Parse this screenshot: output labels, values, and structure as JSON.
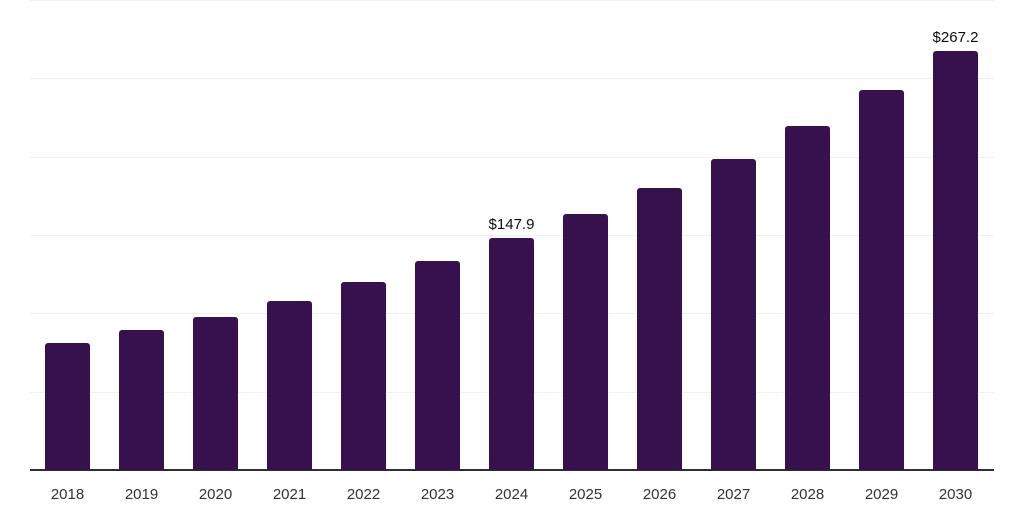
{
  "chart_data": {
    "type": "bar",
    "title": "",
    "xlabel": "",
    "ylabel": "",
    "categories": [
      "2018",
      "2019",
      "2020",
      "2021",
      "2022",
      "2023",
      "2024",
      "2025",
      "2026",
      "2027",
      "2028",
      "2029",
      "2030"
    ],
    "values": [
      81.3,
      89.6,
      97.8,
      107.6,
      119.7,
      133.2,
      147.9,
      163.2,
      179.9,
      198.5,
      219.6,
      242.6,
      267.2
    ],
    "data_labels": {
      "2024": "$147.9",
      "2030": "$267.2"
    },
    "ylim": [
      0,
      300
    ],
    "gridline_step": 50,
    "grid": "horizontal",
    "legend": "none",
    "y_tick_labels_visible": false,
    "colors": {
      "bar": "#36114d",
      "axis_line": "#2e2e2e",
      "gridline": "#f2f2f2",
      "tick_label": "#333333",
      "data_label": "#0d0d0d",
      "background": "#ffffff"
    }
  }
}
